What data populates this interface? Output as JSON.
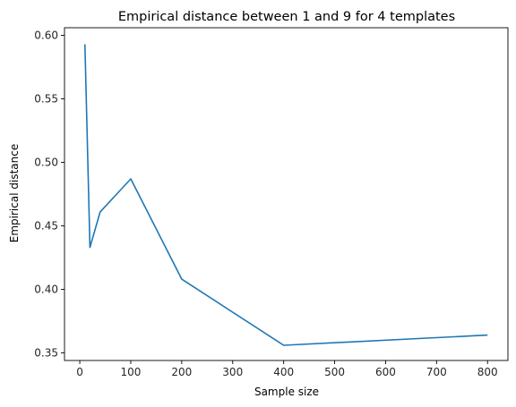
{
  "chart_data": {
    "type": "line",
    "title": "Empirical distance between 1 and 9 for 4 templates",
    "xlabel": "Sample size",
    "ylabel": "Empirical distance",
    "xlim": [
      -30,
      840
    ],
    "ylim": [
      0.344,
      0.606
    ],
    "xticks": [
      0,
      100,
      200,
      300,
      400,
      500,
      600,
      700,
      800
    ],
    "yticks": [
      0.35,
      0.4,
      0.45,
      0.5,
      0.55,
      0.6
    ],
    "ytick_labels": [
      "0.35",
      "0.40",
      "0.45",
      "0.50",
      "0.55",
      "0.60"
    ],
    "grid": false,
    "series": [
      {
        "color": "#1f77b4",
        "x": [
          10,
          20,
          40,
          100,
          200,
          400,
          800
        ],
        "y": [
          0.593,
          0.433,
          0.461,
          0.487,
          0.408,
          0.356,
          0.364
        ]
      }
    ]
  }
}
